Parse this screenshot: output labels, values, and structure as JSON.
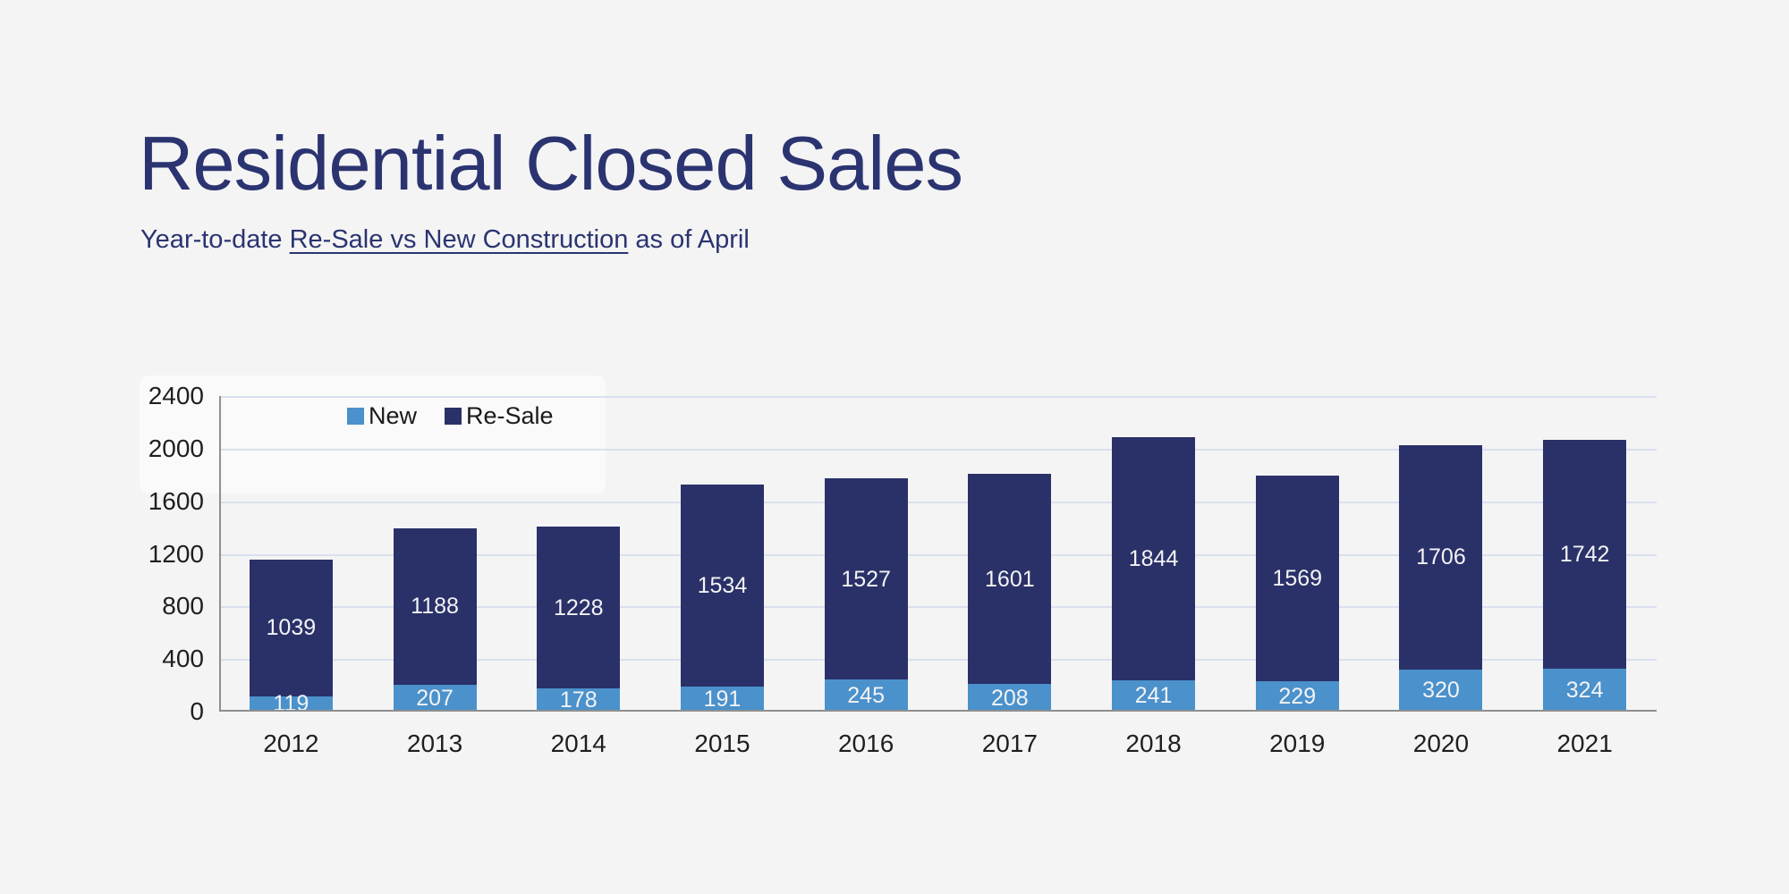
{
  "header": {
    "title": "Residential Closed Sales",
    "subtitle_prefix": "Year-to-date ",
    "subtitle_underlined": "Re-Sale vs New Construction",
    "subtitle_suffix": " as of April"
  },
  "colors": {
    "background": "#F4F4F5",
    "title_text": "#2B3470",
    "new_series": "#4B91CB",
    "resale_series": "#2A3168",
    "gridline": "#D9E0EE",
    "axis_line": "#8F8F8F",
    "tick_text": "#1F1F1F",
    "bar_label_text": "#F2F3F5"
  },
  "legend": {
    "items": [
      {
        "label": "New",
        "color": "#4B91CB"
      },
      {
        "label": "Re-Sale",
        "color": "#2A3168"
      }
    ]
  },
  "chart_data": {
    "type": "bar",
    "stacked": true,
    "title": "Residential Closed Sales",
    "subtitle": "Year-to-date Re-Sale vs New Construction as of April",
    "categories": [
      "2012",
      "2013",
      "2014",
      "2015",
      "2016",
      "2017",
      "2018",
      "2019",
      "2020",
      "2021"
    ],
    "series": [
      {
        "name": "New",
        "color": "#4B91CB",
        "values": [
          119,
          207,
          178,
          191,
          245,
          208,
          241,
          229,
          320,
          324
        ]
      },
      {
        "name": "Re-Sale",
        "color": "#2A3168",
        "values": [
          1039,
          1188,
          1228,
          1534,
          1527,
          1601,
          1844,
          1569,
          1706,
          1742
        ]
      }
    ],
    "xlabel": "",
    "ylabel": "",
    "ylim": [
      0,
      2400
    ],
    "yticks": [
      0,
      400,
      800,
      1200,
      1600,
      2000,
      2400
    ],
    "grid": true,
    "legend_position": "top-left-inside",
    "bar_value_labels": true
  }
}
